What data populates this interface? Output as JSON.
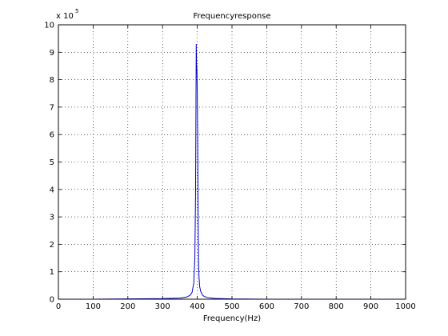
{
  "chart_data": {
    "type": "line",
    "title": "Frequencyresponse",
    "xlabel": "Frequency(Hz)",
    "ylabel": "",
    "y_multiplier_base": "x 10",
    "y_multiplier_exp": "5",
    "xlim": [
      0,
      1000
    ],
    "ylim": [
      0,
      10
    ],
    "x_ticks": [
      "0",
      "100",
      "200",
      "300",
      "400",
      "500",
      "600",
      "700",
      "800",
      "900",
      "1000"
    ],
    "y_ticks": [
      "0",
      "1",
      "2",
      "3",
      "4",
      "5",
      "6",
      "7",
      "8",
      "9",
      "10"
    ],
    "grid": true,
    "series_color": "#0000cc",
    "series": [
      {
        "x": [
          0,
          100,
          200,
          300,
          350,
          370,
          380,
          385,
          390,
          393,
          395,
          396,
          397,
          398,
          399,
          400,
          401,
          402,
          403,
          404,
          405,
          407,
          410,
          415,
          420,
          430,
          450,
          500,
          600,
          700,
          800,
          900,
          1000
        ],
        "y": [
          0.0,
          0.0,
          0.01,
          0.02,
          0.04,
          0.08,
          0.15,
          0.25,
          0.6,
          1.5,
          3.8,
          6.5,
          9.3,
          8.6,
          8.3,
          7.5,
          6.2,
          4.0,
          2.2,
          1.2,
          0.8,
          0.45,
          0.28,
          0.15,
          0.1,
          0.06,
          0.03,
          0.01,
          0.0,
          0.0,
          0.0,
          0.0,
          0.0
        ]
      }
    ]
  }
}
